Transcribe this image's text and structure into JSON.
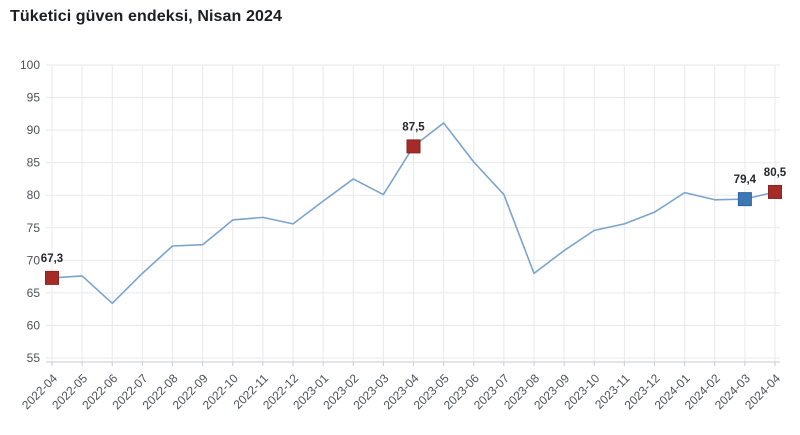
{
  "header": {
    "title": "Tüketici güven endeksi, Nisan 2024"
  },
  "chart_data": {
    "type": "line",
    "title": "Tüketici güven endeksi, Nisan 2024",
    "x": [
      "2022-04",
      "2022-05",
      "2022-06",
      "2022-07",
      "2022-08",
      "2022-09",
      "2022-10",
      "2022-11",
      "2022-12",
      "2023-01",
      "2023-02",
      "2023-03",
      "2023-04",
      "2023-05",
      "2023-06",
      "2023-07",
      "2023-08",
      "2023-09",
      "2023-10",
      "2023-11",
      "2023-12",
      "2024-01",
      "2024-02",
      "2024-03",
      "2024-04"
    ],
    "values": [
      67.3,
      67.6,
      63.4,
      68.0,
      72.2,
      72.4,
      76.2,
      76.6,
      75.6,
      79.1,
      82.5,
      80.1,
      87.5,
      91.1,
      85.1,
      80.1,
      68.0,
      71.5,
      74.6,
      75.6,
      77.4,
      80.4,
      79.3,
      79.4,
      80.5
    ],
    "ylim": [
      55,
      100
    ],
    "ytick_step": 5,
    "yticks": [
      55,
      60,
      65,
      70,
      75,
      80,
      85,
      90,
      95,
      100
    ],
    "grid": true,
    "legend": "none",
    "xlabel": "",
    "ylabel": "",
    "colors": {
      "line": "#7ba4cc",
      "grid": "#e8e9ec",
      "axis": "#c9cbcf",
      "tick_text": "#4d5156",
      "annotation_text": "#26282b",
      "highlight_red": "#a52b28",
      "highlight_red_stroke": "#8c2421",
      "highlight_blue": "#3c78b4",
      "highlight_blue_stroke": "#2f639a"
    },
    "highlights": [
      {
        "index": 0,
        "month": "2022-04",
        "value": 67.3,
        "label": "67,3",
        "color": "#a52b28",
        "stroke": "#8c2421"
      },
      {
        "index": 12,
        "month": "2023-04",
        "value": 87.5,
        "label": "87,5",
        "color": "#a52b28",
        "stroke": "#8c2421"
      },
      {
        "index": 23,
        "month": "2024-03",
        "value": 79.4,
        "label": "79,4",
        "color": "#3c78b4",
        "stroke": "#2f639a"
      },
      {
        "index": 24,
        "month": "2024-04",
        "value": 80.5,
        "label": "80,5",
        "color": "#a52b28",
        "stroke": "#8c2421"
      }
    ]
  }
}
